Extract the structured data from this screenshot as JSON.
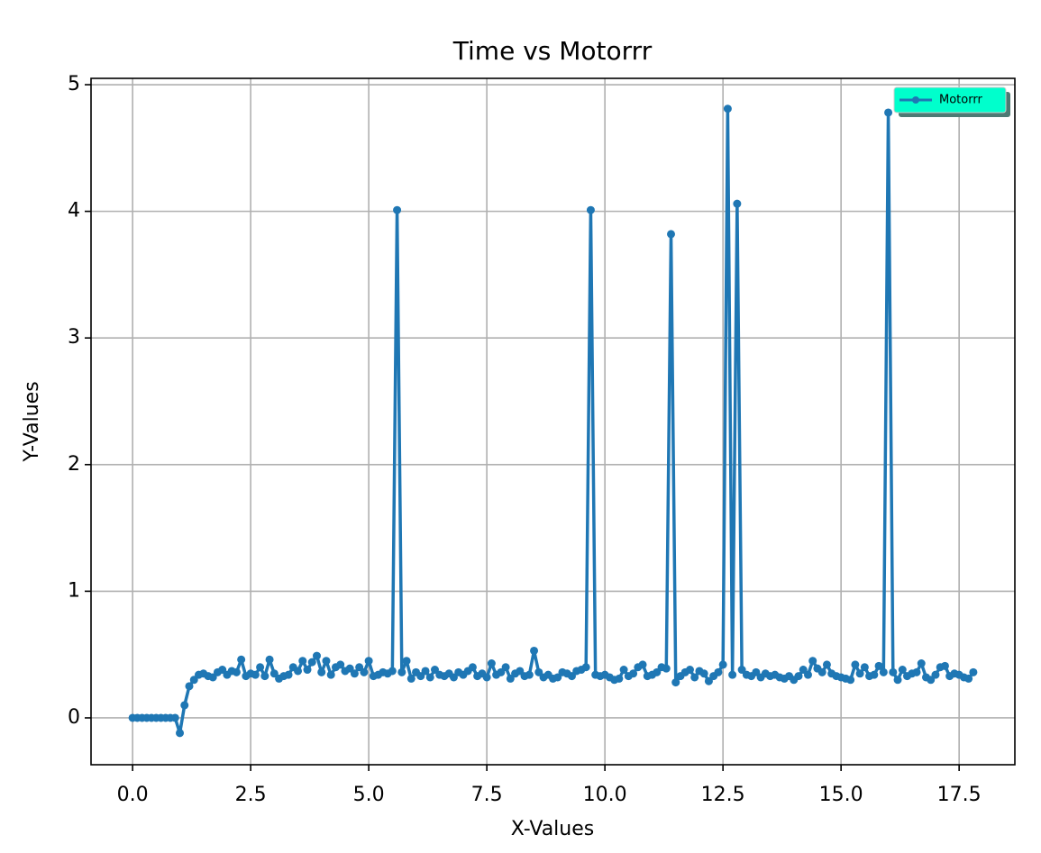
{
  "chart_data": {
    "type": "line",
    "title": "Time vs Motorrr",
    "x_label": "X-Values",
    "y_label": "Y-Values",
    "x": [
      0.0,
      0.1,
      0.2,
      0.3,
      0.4,
      0.5,
      0.6,
      0.7,
      0.8,
      0.9,
      1.0,
      1.1,
      1.2,
      1.3,
      1.4,
      1.5,
      1.6,
      1.7,
      1.8,
      1.9,
      2.0,
      2.1,
      2.2,
      2.3,
      2.4,
      2.5,
      2.6,
      2.7,
      2.8,
      2.9,
      3.0,
      3.1,
      3.2,
      3.3,
      3.4,
      3.5,
      3.6,
      3.7,
      3.8,
      3.9,
      4.0,
      4.1,
      4.2,
      4.3,
      4.4,
      4.5,
      4.6,
      4.7,
      4.8,
      4.9,
      5.0,
      5.1,
      5.2,
      5.3,
      5.4,
      5.5,
      5.6,
      5.7,
      5.8,
      5.9,
      6.0,
      6.1,
      6.2,
      6.3,
      6.4,
      6.5,
      6.6,
      6.7,
      6.8,
      6.9,
      7.0,
      7.1,
      7.2,
      7.3,
      7.4,
      7.5,
      7.6,
      7.7,
      7.8,
      7.9,
      8.0,
      8.1,
      8.2,
      8.3,
      8.4,
      8.5,
      8.6,
      8.7,
      8.8,
      8.9,
      9.0,
      9.1,
      9.2,
      9.3,
      9.4,
      9.5,
      9.6,
      9.7,
      9.8,
      9.9,
      10.0,
      10.1,
      10.2,
      10.3,
      10.4,
      10.5,
      10.6,
      10.7,
      10.8,
      10.9,
      11.0,
      11.1,
      11.2,
      11.3,
      11.4,
      11.5,
      11.6,
      11.7,
      11.8,
      11.9,
      12.0,
      12.1,
      12.2,
      12.3,
      12.4,
      12.5,
      12.6,
      12.7,
      12.8,
      12.9,
      13.0,
      13.1,
      13.2,
      13.3,
      13.4,
      13.5,
      13.6,
      13.7,
      13.8,
      13.9,
      14.0,
      14.1,
      14.2,
      14.3,
      14.4,
      14.5,
      14.6,
      14.7,
      14.8,
      14.9,
      15.0,
      15.1,
      15.2,
      15.3,
      15.4,
      15.5,
      15.6,
      15.7,
      15.8,
      15.9,
      16.0,
      16.1,
      16.2,
      16.3,
      16.4,
      16.5,
      16.6,
      16.7,
      16.8,
      16.9,
      17.0,
      17.1,
      17.2,
      17.3,
      17.4,
      17.5,
      17.6,
      17.7,
      17.8
    ],
    "series": [
      {
        "name": "Motorrr",
        "color": "#1f77b4",
        "values": [
          0,
          0,
          0,
          0,
          0,
          0,
          0,
          0,
          0,
          0,
          -0.12,
          0.1,
          0.25,
          0.3,
          0.34,
          0.35,
          0.33,
          0.32,
          0.36,
          0.38,
          0.34,
          0.37,
          0.36,
          0.46,
          0.33,
          0.35,
          0.34,
          0.4,
          0.33,
          0.46,
          0.35,
          0.31,
          0.33,
          0.34,
          0.4,
          0.37,
          0.45,
          0.38,
          0.44,
          0.49,
          0.36,
          0.45,
          0.34,
          0.4,
          0.42,
          0.37,
          0.39,
          0.35,
          0.4,
          0.36,
          0.45,
          0.33,
          0.34,
          0.36,
          0.35,
          0.37,
          4.01,
          0.36,
          0.45,
          0.31,
          0.36,
          0.33,
          0.37,
          0.32,
          0.38,
          0.34,
          0.33,
          0.35,
          0.32,
          0.36,
          0.34,
          0.37,
          0.4,
          0.33,
          0.35,
          0.32,
          0.43,
          0.34,
          0.36,
          0.4,
          0.31,
          0.35,
          0.37,
          0.33,
          0.34,
          0.53,
          0.36,
          0.32,
          0.34,
          0.31,
          0.32,
          0.36,
          0.35,
          0.33,
          0.37,
          0.38,
          0.4,
          4.01,
          0.34,
          0.33,
          0.34,
          0.32,
          0.3,
          0.31,
          0.38,
          0.33,
          0.35,
          0.4,
          0.42,
          0.33,
          0.34,
          0.36,
          0.4,
          0.39,
          3.82,
          0.28,
          0.33,
          0.36,
          0.38,
          0.32,
          0.37,
          0.35,
          0.29,
          0.33,
          0.36,
          0.42,
          4.81,
          0.34,
          4.06,
          0.38,
          0.34,
          0.33,
          0.36,
          0.32,
          0.35,
          0.33,
          0.34,
          0.32,
          0.31,
          0.33,
          0.3,
          0.33,
          0.38,
          0.34,
          0.45,
          0.39,
          0.36,
          0.42,
          0.35,
          0.33,
          0.32,
          0.31,
          0.3,
          0.42,
          0.35,
          0.4,
          0.33,
          0.34,
          0.41,
          0.36,
          4.78,
          0.36,
          0.3,
          0.38,
          0.33,
          0.35,
          0.36,
          0.43,
          0.32,
          0.3,
          0.34,
          0.4,
          0.41,
          0.33,
          0.35,
          0.34,
          0.32,
          0.31,
          0.36
        ]
      }
    ],
    "xlim": [
      -0.88,
      18.68
    ],
    "ylim": [
      -0.37,
      5.05
    ],
    "xticks": [
      {
        "value": 0,
        "label": "0.0"
      },
      {
        "value": 2.5,
        "label": "2.5"
      },
      {
        "value": 5,
        "label": "5.0"
      },
      {
        "value": 7.5,
        "label": "7.5"
      },
      {
        "value": 10,
        "label": "10.0"
      },
      {
        "value": 12.5,
        "label": "12.5"
      },
      {
        "value": 15,
        "label": "15.0"
      },
      {
        "value": 17.5,
        "label": "17.5"
      }
    ],
    "yticks": [
      0,
      1,
      2,
      3,
      4,
      5
    ],
    "grid": true,
    "legend": "upper right",
    "legend_color": "#00ffcc"
  }
}
